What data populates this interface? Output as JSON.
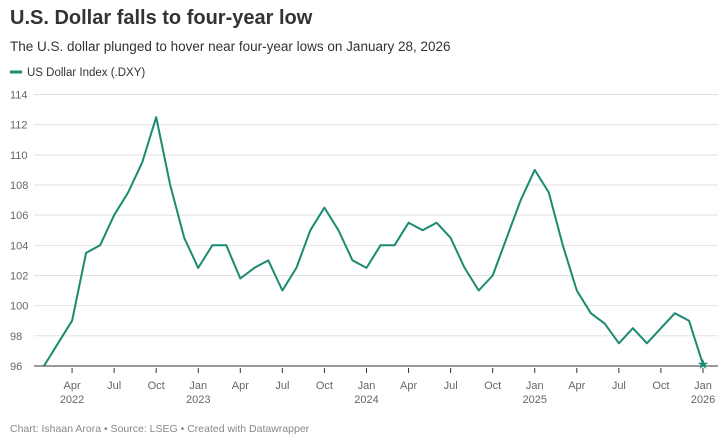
{
  "chart_data": {
    "type": "line",
    "title": "U.S. Dollar falls to four-year low",
    "subtitle": "The U.S. dollar plunged to hover near four-year lows on January 28, 2026",
    "footer": "Chart: Ishaan Arora • Source: LSEG • Created with Datawrapper",
    "legend": "top-left",
    "grid": true,
    "x": [
      "2022-02",
      "2022-03",
      "2022-04",
      "2022-05",
      "2022-06",
      "2022-07",
      "2022-08",
      "2022-09",
      "2022-10",
      "2022-11",
      "2022-12",
      "2023-01",
      "2023-02",
      "2023-03",
      "2023-04",
      "2023-05",
      "2023-06",
      "2023-07",
      "2023-08",
      "2023-09",
      "2023-10",
      "2023-11",
      "2023-12",
      "2024-01",
      "2024-02",
      "2024-03",
      "2024-04",
      "2024-05",
      "2024-06",
      "2024-07",
      "2024-08",
      "2024-09",
      "2024-10",
      "2024-11",
      "2024-12",
      "2025-01",
      "2025-02",
      "2025-03",
      "2025-04",
      "2025-05",
      "2025-06",
      "2025-07",
      "2025-08",
      "2025-09",
      "2025-10",
      "2025-11",
      "2025-12",
      "2026-01"
    ],
    "series": [
      {
        "name": "US Dollar Index (.DXY)",
        "color": "#1a8a72",
        "values": [
          96,
          97.5,
          99,
          103.5,
          104,
          106,
          107.5,
          109.5,
          112.5,
          108,
          104.5,
          102.5,
          104,
          104,
          101.8,
          102.5,
          103,
          101,
          102.5,
          105,
          106.5,
          105,
          103,
          102.5,
          104,
          104,
          105.5,
          105,
          105.5,
          104.5,
          102.5,
          101,
          102,
          104.5,
          107,
          109,
          107.5,
          104,
          101,
          99.5,
          98.8,
          97.5,
          98.5,
          97.5,
          98.5,
          99.5,
          99,
          96.1
        ]
      }
    ],
    "xlim": [
      "2022-01",
      "2026-02"
    ],
    "xticks": [
      {
        "value": "2022-04",
        "label": "Apr 2022"
      },
      {
        "value": "2022-07",
        "label": "Jul"
      },
      {
        "value": "2022-10",
        "label": "Oct"
      },
      {
        "value": "2023-01",
        "label": "Jan 2023"
      },
      {
        "value": "2023-04",
        "label": "Apr"
      },
      {
        "value": "2023-07",
        "label": "Jul"
      },
      {
        "value": "2023-10",
        "label": "Oct"
      },
      {
        "value": "2024-01",
        "label": "Jan 2024"
      },
      {
        "value": "2024-04",
        "label": "Apr"
      },
      {
        "value": "2024-07",
        "label": "Jul"
      },
      {
        "value": "2024-10",
        "label": "Oct"
      },
      {
        "value": "2025-01",
        "label": "Jan 2025"
      },
      {
        "value": "2025-04",
        "label": "Apr"
      },
      {
        "value": "2025-07",
        "label": "Jul"
      },
      {
        "value": "2025-10",
        "label": "Oct"
      },
      {
        "value": "2026-01",
        "label": "Jan 2026"
      }
    ],
    "ylim": [
      95.2,
      114.5
    ],
    "yticks": [
      96,
      98,
      100,
      102,
      104,
      106,
      108,
      110,
      112,
      114
    ]
  }
}
